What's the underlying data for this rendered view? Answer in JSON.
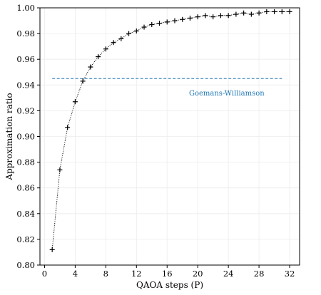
{
  "chart_data": {
    "type": "line",
    "xlabel": "QAOA steps (P)",
    "ylabel": "Approximation ratio",
    "xlim": [
      -0.6,
      33.3
    ],
    "ylim": [
      0.8,
      1.0
    ],
    "xticks": [
      0,
      4,
      8,
      12,
      16,
      20,
      24,
      28,
      32
    ],
    "xtick_labels": [
      "0",
      "4",
      "8",
      "12",
      "16",
      "20",
      "24",
      "28",
      "32"
    ],
    "yticks": [
      0.8,
      0.82,
      0.84,
      0.86,
      0.88,
      0.9,
      0.92,
      0.94,
      0.96,
      0.98,
      1.0
    ],
    "ytick_labels": [
      "0.80",
      "0.82",
      "0.84",
      "0.86",
      "0.88",
      "0.90",
      "0.92",
      "0.94",
      "0.96",
      "0.98",
      "1.00"
    ],
    "grid": true,
    "series": [
      {
        "line_style": "dotted",
        "marker": "+",
        "color": "#000000",
        "x": [
          1,
          2,
          3,
          4,
          5,
          6,
          7,
          8,
          9,
          10,
          11,
          12,
          13,
          14,
          15,
          16,
          17,
          18,
          19,
          20,
          21,
          22,
          23,
          24,
          25,
          26,
          27,
          28,
          29,
          30,
          31,
          32
        ],
        "y": [
          0.812,
          0.874,
          0.907,
          0.927,
          0.943,
          0.954,
          0.962,
          0.968,
          0.973,
          0.976,
          0.98,
          0.982,
          0.985,
          0.987,
          0.988,
          0.989,
          0.99,
          0.991,
          0.992,
          0.993,
          0.994,
          0.993,
          0.994,
          0.994,
          0.995,
          0.996,
          0.995,
          0.996,
          0.997,
          0.997,
          0.997,
          0.997
        ]
      }
    ],
    "reference_line": {
      "label": "Goemans-Williamson",
      "y": 0.945,
      "x_range": [
        1,
        31
      ],
      "line_style": "dashed",
      "color": "#1f77b4"
    }
  }
}
